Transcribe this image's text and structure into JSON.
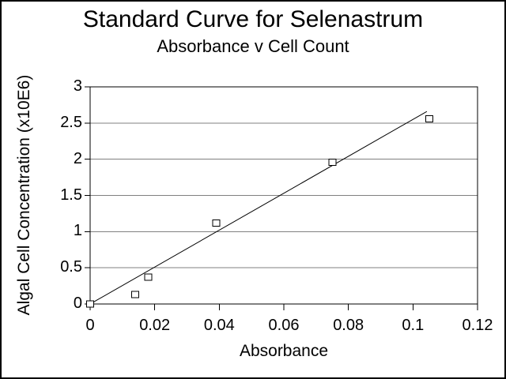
{
  "chart_data": {
    "type": "scatter",
    "title": "Standard Curve for Selenastrum",
    "subtitle": "Absorbance v Cell Count",
    "xlabel": "Absorbance",
    "ylabel": "Algal Cell Concentration (x10E6)",
    "xlim": [
      0,
      0.12
    ],
    "ylim": [
      0,
      3
    ],
    "x_ticks": [
      0,
      0.02,
      0.04,
      0.06,
      0.08,
      0.1,
      0.12
    ],
    "x_tick_labels": [
      "0",
      "0.02",
      "0.04",
      "0.06",
      "0.08",
      "0.1",
      "0.12"
    ],
    "y_ticks": [
      0,
      0.5,
      1,
      1.5,
      2,
      2.5,
      3
    ],
    "y_tick_labels": [
      "0",
      "0.5",
      "1",
      "1.5",
      "2",
      "2.5",
      "3"
    ],
    "gridlines_y": [
      0.5,
      1,
      1.5,
      2,
      2.5
    ],
    "grid_on": true,
    "legend": "none",
    "marker": "open-square",
    "series": [
      {
        "name": "Absorbance v Cell Count",
        "points": [
          [
            0,
            0
          ],
          [
            0.014,
            0.13
          ],
          [
            0.018,
            0.37
          ],
          [
            0.039,
            1.12
          ],
          [
            0.075,
            1.96
          ],
          [
            0.105,
            2.56
          ]
        ]
      }
    ],
    "trendline": {
      "x1": 0,
      "y1": 0,
      "x2": 0.1043,
      "y2": 2.66
    },
    "colors": {
      "background": "#ffffff",
      "text": "#000000",
      "axis": "#000000",
      "gridline": "#808080",
      "marker_fill": "#ffffff",
      "marker_stroke": "#000000",
      "trendline": "#000000"
    }
  }
}
